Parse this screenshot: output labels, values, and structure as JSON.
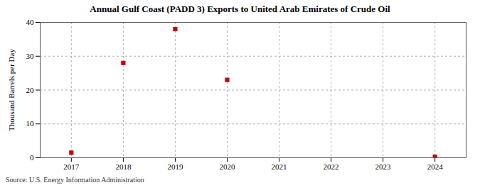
{
  "chart_data": {
    "type": "scatter",
    "title": "Annual Gulf Coast (PADD 3) Exports to United Arab Emirates of Crude Oil",
    "ylabel": "Thousand Barrels per Day",
    "source": "Source: U.S. Energy Information Administration",
    "x": [
      2017,
      2018,
      2019,
      2020,
      2024
    ],
    "values": [
      1.5,
      28.0,
      38.0,
      23.0,
      0.3
    ],
    "color": "#cc0000",
    "marker": "square",
    "xlim": [
      2016.4,
      2024.6
    ],
    "xticks": [
      2017,
      2018,
      2019,
      2020,
      2021,
      2022,
      2023,
      2024
    ],
    "ylim": [
      0,
      40
    ],
    "yticks": [
      0,
      10,
      20,
      30,
      40
    ],
    "grid": true
  }
}
